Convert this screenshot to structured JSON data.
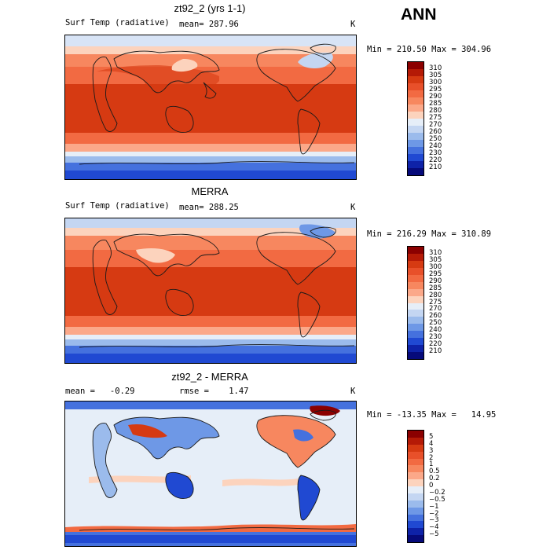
{
  "panel_label": "ANN",
  "panels": [
    {
      "title": "zt92_2 (yrs 1-1)",
      "left_label": "Surf Temp (radiative)",
      "stat": "mean= 287.96",
      "unit": "K",
      "minmax": "Min = 210.50 Max = 304.96",
      "colorbar": {
        "labels": [
          "310",
          "305",
          "300",
          "295",
          "290",
          "285",
          "280",
          "275",
          "270",
          "260",
          "250",
          "240",
          "230",
          "220",
          "210"
        ],
        "colors": [
          "#8b0000",
          "#b51a06",
          "#d63a12",
          "#e8502a",
          "#f26a42",
          "#f7875f",
          "#fba889",
          "#fcd3bd",
          "#e6eef8",
          "#c4d6f2",
          "#9bbbec",
          "#6e98e6",
          "#4571de",
          "#2049d2",
          "#0e22a8",
          "#060a7a"
        ]
      }
    },
    {
      "title": "MERRA",
      "left_label": "Surf Temp (radiative)",
      "stat": "mean= 288.25",
      "unit": "K",
      "minmax": "Min = 216.29 Max = 310.89",
      "colorbar": {
        "labels": [
          "310",
          "305",
          "300",
          "295",
          "290",
          "285",
          "280",
          "275",
          "270",
          "260",
          "250",
          "240",
          "230",
          "220",
          "210"
        ],
        "colors": [
          "#8b0000",
          "#b51a06",
          "#d63a12",
          "#e8502a",
          "#f26a42",
          "#f7875f",
          "#fba889",
          "#fcd3bd",
          "#e6eef8",
          "#c4d6f2",
          "#9bbbec",
          "#6e98e6",
          "#4571de",
          "#2049d2",
          "#0e22a8",
          "#060a7a"
        ]
      }
    },
    {
      "title": "zt92_2 - MERRA",
      "left_label": "mean =   -0.29",
      "stat": "rmse =    1.47",
      "unit": "K",
      "minmax": "Min = -13.35 Max =   14.95",
      "colorbar": {
        "labels": [
          "5",
          "4",
          "3",
          "2",
          "1",
          "0.5",
          "0.2",
          "0",
          "−0.2",
          "−0.5",
          "−1",
          "−2",
          "−3",
          "−4",
          "−5"
        ],
        "colors": [
          "#8b0000",
          "#b51a06",
          "#d63a12",
          "#e8502a",
          "#f26a42",
          "#f7875f",
          "#fba889",
          "#fcd3bd",
          "#e6eef8",
          "#c4d6f2",
          "#9bbbec",
          "#6e98e6",
          "#4571de",
          "#2049d2",
          "#0e22a8",
          "#060a7a"
        ]
      }
    }
  ]
}
